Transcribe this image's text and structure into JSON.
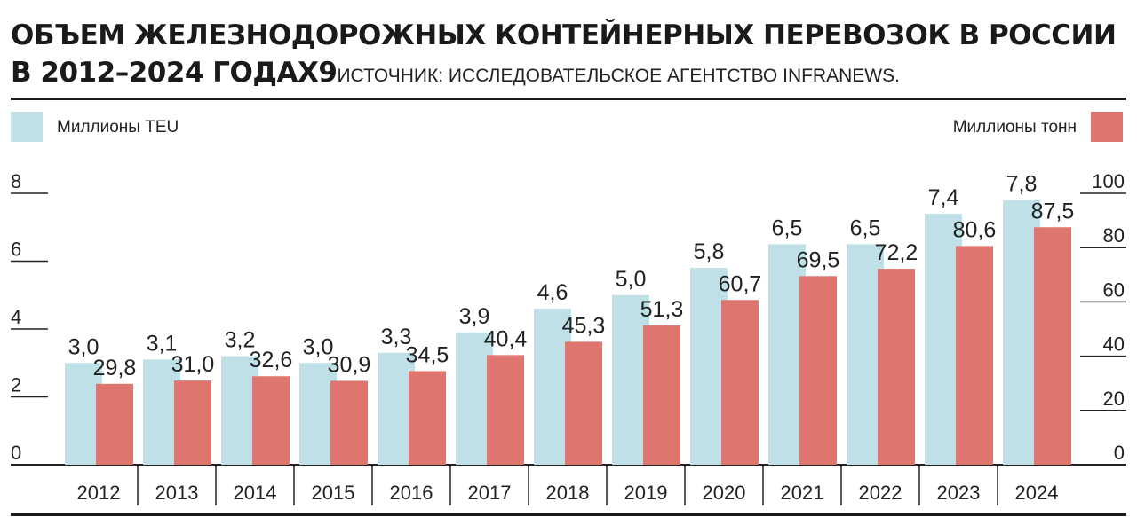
{
  "title_line1": "ОБЪЕМ ЖЕЛЕЗНОДОРОЖНЫХ КОНТЕЙНЕРНЫХ ПЕРЕВОЗОК В РОССИИ",
  "title_line2": "В 2012–2024 ГОДАХ9",
  "source": "ИСТОЧНИК: ИССЛЕДОВАТЕЛЬСКОЕ АГЕНТСТВО INFRANEWS.",
  "colors": {
    "teu": "#bfe0e6",
    "tons": "#df756f",
    "axis": "#222222"
  },
  "chart_data": {
    "type": "bar",
    "categories": [
      "2012",
      "2013",
      "2014",
      "2015",
      "2016",
      "2017",
      "2018",
      "2019",
      "2020",
      "2021",
      "2022",
      "2023",
      "2024"
    ],
    "series": [
      {
        "name": "Миллионы TEU",
        "axis": "left",
        "values": [
          3.0,
          3.1,
          3.2,
          3.0,
          3.3,
          3.9,
          4.6,
          5.0,
          5.8,
          6.5,
          6.5,
          7.4,
          7.8
        ],
        "labels": [
          "3,0",
          "3,1",
          "3,2",
          "3,0",
          "3,3",
          "3,9",
          "4,6",
          "5,0",
          "5,8",
          "6,5",
          "6,5",
          "7,4",
          "7,8"
        ]
      },
      {
        "name": "Миллионы тонн",
        "axis": "right",
        "values": [
          29.8,
          31.0,
          32.6,
          30.9,
          34.5,
          40.4,
          45.3,
          51.3,
          60.7,
          69.5,
          72.2,
          80.6,
          87.5
        ],
        "labels": [
          "29,8",
          "31,0",
          "32,6",
          "30,9",
          "34,5",
          "40,4",
          "45,3",
          "51,3",
          "60,7",
          "69,5",
          "72,2",
          "80,6",
          "87,5"
        ]
      }
    ],
    "y_left": {
      "ylim": [
        0,
        8
      ],
      "ticks": [
        0,
        2,
        4,
        6,
        8
      ]
    },
    "y_right": {
      "ylim": [
        0,
        100
      ],
      "ticks": [
        0,
        20,
        40,
        60,
        80,
        100
      ]
    },
    "legend_placement": "top",
    "grid": false
  }
}
